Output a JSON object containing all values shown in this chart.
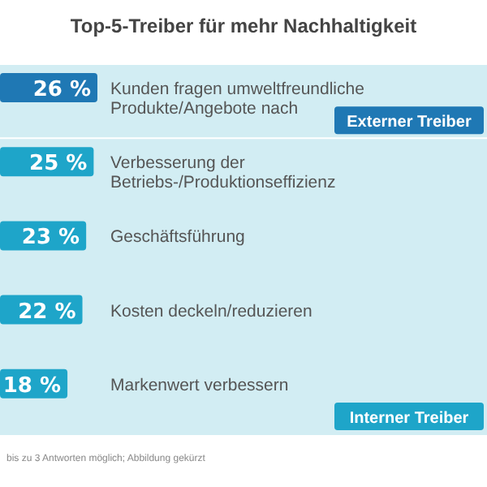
{
  "chart_data": {
    "type": "bar",
    "orientation": "horizontal",
    "title": "Top-5-Treiber für mehr Nachhaltigkeit",
    "categories": [
      "Kunden fragen umweltfreundliche Produkte/Angebote nach",
      "Verbesserung der Betriebs-/Produktionseffizienz",
      "Geschäftsführung",
      "Kosten deckeln/reduzieren",
      "Markenwert verbessern"
    ],
    "values": [
      26,
      25,
      23,
      22,
      18
    ],
    "value_labels": [
      "26 %",
      "25 %",
      "23 %",
      "22 %",
      "18 %"
    ],
    "colors": [
      "#1f78b4",
      "#1ea5c9",
      "#1ea5c9",
      "#1ea5c9",
      "#1ea5c9"
    ],
    "annotations": [
      "Externer Treiber",
      "Interner Treiber",
      "bis zu 3 Antworten möglich; Abbildung gekürzt"
    ]
  }
}
